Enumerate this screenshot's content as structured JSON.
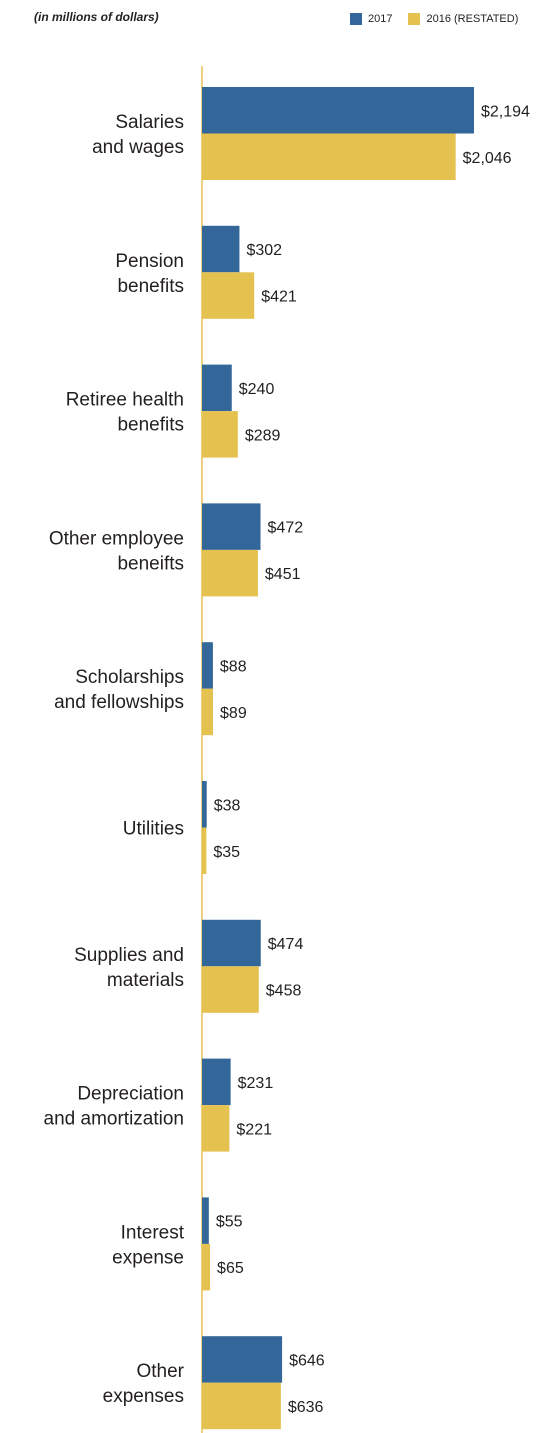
{
  "chart_data": {
    "type": "bar",
    "orientation": "horizontal",
    "subtitle": "(in millions of dollars)",
    "categories": [
      [
        "Salaries",
        "and wages"
      ],
      [
        "Pension",
        "benefits"
      ],
      [
        "Retiree health",
        "benefits"
      ],
      [
        "Other employee",
        "beneifts"
      ],
      [
        "Scholarships",
        "and fellowships"
      ],
      [
        "Utilities"
      ],
      [
        "Supplies and",
        "materials"
      ],
      [
        "Depreciation",
        "and amortization"
      ],
      [
        "Interest",
        "expense"
      ],
      [
        "Other",
        "expenses"
      ]
    ],
    "series": [
      {
        "name": "2017",
        "color": "#336699",
        "values": [
          2194,
          302,
          240,
          472,
          88,
          38,
          474,
          231,
          55,
          646
        ],
        "labels": [
          "$2,194",
          "$302",
          "$240",
          "$472",
          "$88",
          "$38",
          "$474",
          "$231",
          "$55",
          "$646"
        ]
      },
      {
        "name": "2016 (RESTATED)",
        "color": "#e5c150",
        "values": [
          2046,
          421,
          289,
          451,
          89,
          35,
          458,
          221,
          65,
          636
        ],
        "labels": [
          "$2,046",
          "$421",
          "$289",
          "$451",
          "$89",
          "$35",
          "$458",
          "$221",
          "$65",
          "$636"
        ]
      }
    ],
    "axis_color": "#e5c150",
    "legend_position": "top-right"
  }
}
